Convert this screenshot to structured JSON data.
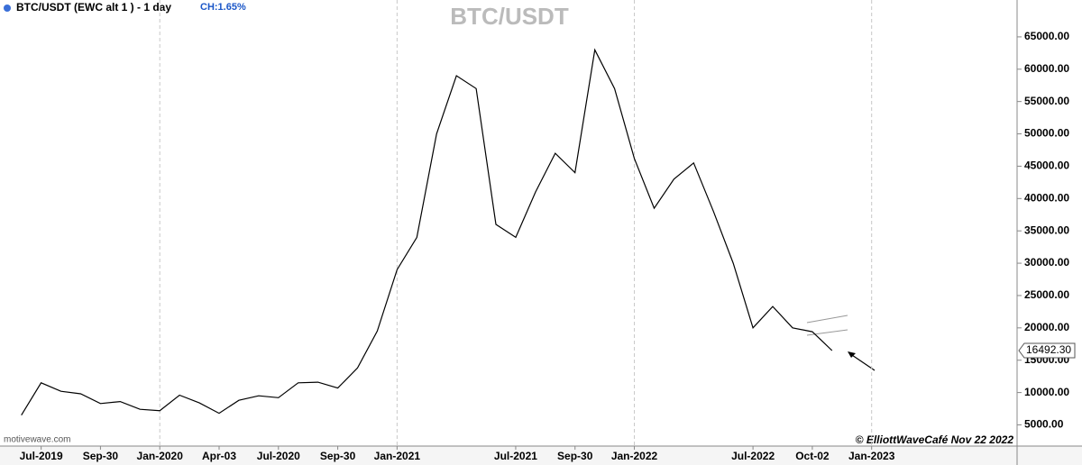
{
  "chart_data": {
    "type": "line",
    "header": "BTC/USDT (EWC alt 1 ) - 1 day",
    "change": "CH:1.65%",
    "title": "BTC/USDT",
    "source": "motivewave.com",
    "copyright": "© ElliottWaveCafé Nov 22 2022",
    "last_price": {
      "value": 16492.3,
      "label": "16492.30"
    },
    "x": [
      "Jun-2019",
      "Jul-2019",
      "Aug-2019",
      "Sep-2019",
      "Oct-2019",
      "Nov-2019",
      "Dec-2019",
      "Jan-2020",
      "Feb-2020",
      "Mar-2020",
      "Apr-2020",
      "May-2020",
      "Jun-2020",
      "Jul-2020",
      "Aug-2020",
      "Sep-2020",
      "Oct-2020",
      "Nov-2020",
      "Dec-2020",
      "Jan-2021",
      "Feb-2021",
      "Mar-2021",
      "Apr-2021",
      "May-2021",
      "Jun-2021",
      "Jul-2021",
      "Aug-2021",
      "Sep-2021",
      "Oct-2021",
      "Nov-2021",
      "Dec-2021",
      "Jan-2022",
      "Feb-2022",
      "Mar-2022",
      "Apr-2022",
      "May-2022",
      "Jun-2022",
      "Jul-2022",
      "Aug-2022",
      "Sep-2022",
      "Oct-2022",
      "Nov-2022"
    ],
    "series": [
      {
        "color": "#000000",
        "values": [
          6500,
          11500,
          10200,
          9800,
          8300,
          8600,
          7400,
          7200,
          9600,
          8400,
          6800,
          8800,
          9500,
          9200,
          11500,
          11600,
          10700,
          13800,
          19500,
          29000,
          34000,
          50000,
          59000,
          57000,
          36000,
          34000,
          41000,
          47000,
          44000,
          63000,
          57000,
          46200,
          38500,
          43000,
          45500,
          38000,
          30000,
          20000,
          23300,
          20000,
          19400,
          16492.3
        ]
      }
    ],
    "ylim": [
      2000,
      70700
    ],
    "yticks": [
      {
        "value": 5000,
        "label": "5000.00"
      },
      {
        "value": 10000,
        "label": "10000.00"
      },
      {
        "value": 15000,
        "label": "15000.00"
      },
      {
        "value": 20000,
        "label": "20000.00"
      },
      {
        "value": 25000,
        "label": "25000.00"
      },
      {
        "value": 30000,
        "label": "30000.00"
      },
      {
        "value": 35000,
        "label": "35000.00"
      },
      {
        "value": 40000,
        "label": "40000.00"
      },
      {
        "value": 45000,
        "label": "45000.00"
      },
      {
        "value": 50000,
        "label": "50000.00"
      },
      {
        "value": 55000,
        "label": "55000.00"
      },
      {
        "value": 60000,
        "label": "60000.00"
      },
      {
        "value": 65000,
        "label": "65000.00"
      }
    ],
    "xticks": [
      "Jul-2019",
      {
        "value": "Oct-2019",
        "label": "Sep-30"
      },
      "Jan-2020",
      {
        "value": "Apr-2020",
        "label": "Apr-03"
      },
      "Jul-2020",
      {
        "value": "Oct-2020",
        "label": "Sep-30"
      },
      "Jan-2021",
      "Jul-2021",
      {
        "value": "Oct-2021",
        "label": "Sep-30"
      },
      "Jan-2022",
      "Jul-2022",
      {
        "value": "Oct-2022",
        "label": "Oct-02"
      },
      "Jan-2023"
    ]
  }
}
